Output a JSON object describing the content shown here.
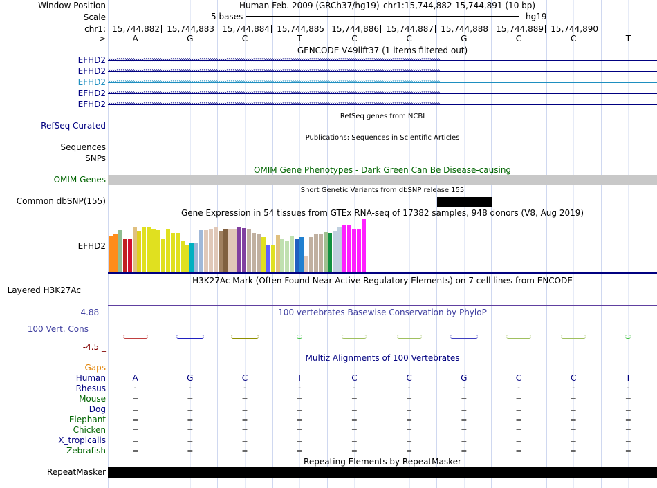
{
  "header": {
    "window_position_label": "Window Position",
    "assembly": "Human Feb. 2009 (GRCh37/hg19)",
    "position": "chr1:15,744,882-15,744,891 (10 bp)",
    "scale_label": "Scale",
    "scale_text": "5 bases",
    "scale_db": "hg19",
    "chrom_label": "chr1:",
    "strand_label": "--->",
    "coords": [
      "15,744,882",
      "15,744,883",
      "15,744,884",
      "15,744,885",
      "15,744,886",
      "15,744,887",
      "15,744,888",
      "15,744,889",
      "15,744,890"
    ],
    "bases": [
      "A",
      "G",
      "C",
      "T",
      "C",
      "C",
      "G",
      "C",
      "C",
      "T"
    ]
  },
  "tracks": {
    "gencode_title": "GENCODE V49lift37 (1 items filtered out)",
    "gencode_genes": [
      "EFHD2",
      "EFHD2",
      "EFHD2",
      "EFHD2",
      "EFHD2"
    ],
    "gencode_colors": [
      "#000080",
      "#000080",
      "#1e8fc0",
      "#000080",
      "#000080"
    ],
    "refseq_title": "RefSeq genes from NCBI",
    "refseq_label": "RefSeq Curated",
    "pubs_title": "Publications: Sequences in Scientific Articles",
    "sequences_label": "Sequences",
    "snps_label": "SNPs",
    "omim_title": "OMIM Gene Phenotypes - Dark Green Can Be Disease-causing",
    "omim_label": "OMIM Genes",
    "dbsnp_title": "Short Genetic Variants from dbSNP release 155",
    "dbsnp_label": "Common dbSNP(155)",
    "gtex_title": "Gene Expression in 54 tissues from GTEx RNA-seq of 17382 samples, 948 donors (V8, Aug 2019)",
    "gtex_label": "EFHD2",
    "h3k27ac_title": "H3K27Ac Mark (Often Found Near Active Regulatory Elements) on 7 cell lines from ENCODE",
    "h3k27ac_label": "Layered H3K27Ac",
    "phylop_max": "4.88 _",
    "phylop_title": "100 vertebrates Basewise Conservation by PhyloP",
    "phylop_label": "100 Vert. Cons",
    "phylop_min": "-4.5 _",
    "gaps_label": "Gaps",
    "multiz_title": "Multiz Alignments of 100 Vertebrates",
    "species": [
      {
        "name": "Human",
        "color": "#000080"
      },
      {
        "name": "Rhesus",
        "color": "#000080"
      },
      {
        "name": "Mouse",
        "color": "#006400"
      },
      {
        "name": "Dog",
        "color": "#000080"
      },
      {
        "name": "Elephant",
        "color": "#006400"
      },
      {
        "name": "Chicken",
        "color": "#006400"
      },
      {
        "name": "X_tropicalis",
        "color": "#000080"
      },
      {
        "name": "Zebrafish",
        "color": "#006400"
      }
    ],
    "rhesus_symbol": "-",
    "match_symbol": "=",
    "repeat_title": "Repeating Elements by RepeatMasker",
    "repeat_label": "RepeatMasker"
  },
  "gtex_bars": {
    "values": [
      0.68,
      0.72,
      0.79,
      0.62,
      0.62,
      0.86,
      0.78,
      0.84,
      0.84,
      0.8,
      0.79,
      0.62,
      0.81,
      0.74,
      0.74,
      0.6,
      0.5,
      0.56,
      0.56,
      0.79,
      0.79,
      0.82,
      0.84,
      0.78,
      0.8,
      0.82,
      0.82,
      0.84,
      0.83,
      0.82,
      0.74,
      0.72,
      0.66,
      0.5,
      0.5,
      0.7,
      0.62,
      0.6,
      0.68,
      0.62,
      0.66,
      0.3,
      0.66,
      0.72,
      0.72,
      0.76,
      0.74,
      0.78,
      0.86,
      0.9,
      0.9,
      0.82,
      0.82,
      1.0
    ],
    "colors": [
      "#ff8c1a",
      "#ff8c1a",
      "#8fbc8f",
      "#c02020",
      "#d01030",
      "#e0c080",
      "#e0d020",
      "#e0e020",
      "#e0e020",
      "#e0e020",
      "#e0e020",
      "#e0e020",
      "#e0e020",
      "#e0e020",
      "#e0e020",
      "#e0e020",
      "#e0e020",
      "#00b0c0",
      "#a0b8d8",
      "#a0b8d8",
      "#e0c8b8",
      "#e0c8b8",
      "#e0c8b8",
      "#a08060",
      "#806040",
      "#e0c8b8",
      "#e0c8b8",
      "#8040a0",
      "#8040a0",
      "#c0b0a0",
      "#c0b0a0",
      "#c0b0a0",
      "#e0e020",
      "#6060ff",
      "#e0e020",
      "#e0c080",
      "#c0e0b0",
      "#c0e0b0",
      "#c0e0b0",
      "#2060c0",
      "#2080d0",
      "#e0c8b8",
      "#c0b0a0",
      "#c0b0a0",
      "#c0b0a0",
      "#a0c090",
      "#109040",
      "#c0d0e0",
      "#c0d0e0",
      "#ff20ff",
      "#ff20ff",
      "#ff20ff",
      "#ff20ff",
      "#ff20ff"
    ]
  },
  "phylop_marks": [
    {
      "pos": 0,
      "color": "#c04040",
      "width": 0.45
    },
    {
      "pos": 1,
      "color": "#2020c0",
      "width": 0.5
    },
    {
      "pos": 2,
      "color": "#909000",
      "width": 0.5
    },
    {
      "pos": 3,
      "color": "#40c040",
      "width": 0.1
    },
    {
      "pos": 4,
      "color": "#a0c060",
      "width": 0.45
    },
    {
      "pos": 5,
      "color": "#a0c060",
      "width": 0.45
    },
    {
      "pos": 6,
      "color": "#4040c0",
      "width": 0.5
    },
    {
      "pos": 7,
      "color": "#a0c060",
      "width": 0.45
    },
    {
      "pos": 8,
      "color": "#a0c060",
      "width": 0.45
    },
    {
      "pos": 9,
      "color": "#40c040",
      "width": 0.1
    }
  ]
}
